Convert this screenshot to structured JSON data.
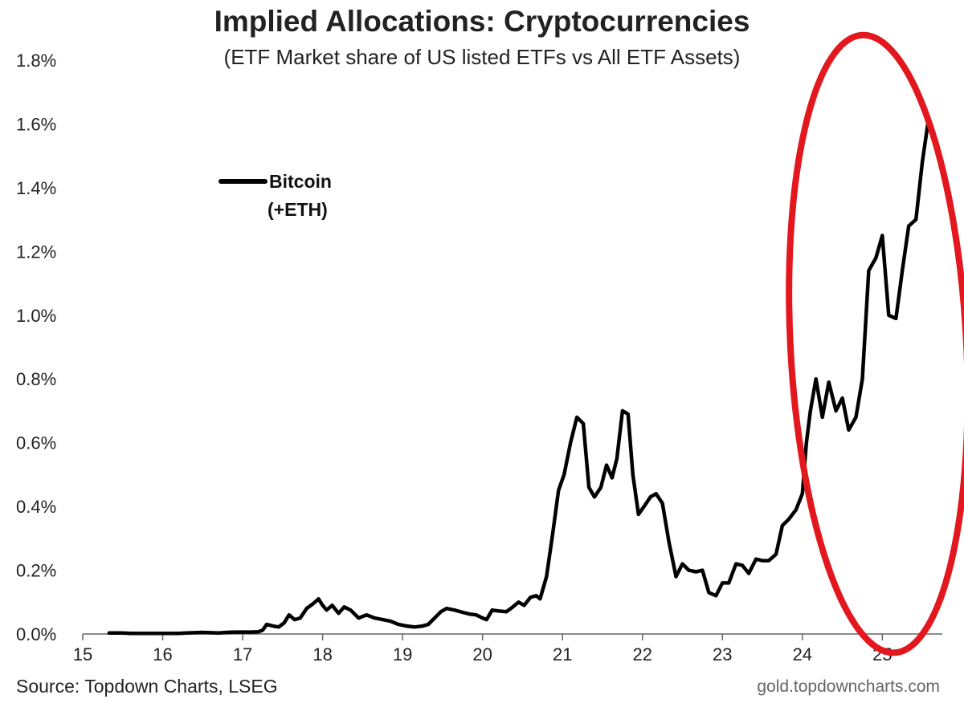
{
  "chart_data": {
    "type": "line",
    "title": "Implied Allocations: Cryptocurrencies",
    "subtitle": "(ETF Market share of US listed ETFs vs All ETF Assets)",
    "source": "Source: Topdown Charts, LSEG",
    "credit": "gold.topdowncharts.com",
    "xlabel": "",
    "ylabel": "",
    "xlim": [
      15,
      25.75
    ],
    "ylim": [
      0,
      1.8
    ],
    "x_ticks": [
      15,
      16,
      17,
      18,
      19,
      20,
      21,
      22,
      23,
      24,
      25
    ],
    "x_tick_labels": [
      "15",
      "16",
      "17",
      "18",
      "19",
      "20",
      "21",
      "22",
      "23",
      "24",
      "25"
    ],
    "y_ticks": [
      0,
      0.2,
      0.4,
      0.6,
      0.8,
      1.0,
      1.2,
      1.4,
      1.6,
      1.8
    ],
    "y_tick_labels": [
      "0.0%",
      "0.2%",
      "0.4%",
      "0.6%",
      "0.8%",
      "1.0%",
      "1.2%",
      "1.4%",
      "1.6%",
      "1.8%"
    ],
    "grid": false,
    "legend_position": "top-left",
    "series": [
      {
        "name": "Bitcoin (+ETH)",
        "name_lines": [
          "Bitcoin",
          "(+ETH)"
        ],
        "color": "#000000",
        "points": [
          [
            15.33,
            0.003
          ],
          [
            15.42,
            0.003
          ],
          [
            15.5,
            0.003
          ],
          [
            15.6,
            0.002
          ],
          [
            15.7,
            0.002
          ],
          [
            15.8,
            0.002
          ],
          [
            15.9,
            0.002
          ],
          [
            16.0,
            0.002
          ],
          [
            16.1,
            0.002
          ],
          [
            16.2,
            0.002
          ],
          [
            16.3,
            0.003
          ],
          [
            16.4,
            0.004
          ],
          [
            16.5,
            0.005
          ],
          [
            16.6,
            0.004
          ],
          [
            16.7,
            0.003
          ],
          [
            16.8,
            0.005
          ],
          [
            16.9,
            0.006
          ],
          [
            17.0,
            0.006
          ],
          [
            17.1,
            0.006
          ],
          [
            17.2,
            0.007
          ],
          [
            17.25,
            0.012
          ],
          [
            17.3,
            0.03
          ],
          [
            17.38,
            0.025
          ],
          [
            17.45,
            0.022
          ],
          [
            17.52,
            0.035
          ],
          [
            17.58,
            0.06
          ],
          [
            17.65,
            0.045
          ],
          [
            17.72,
            0.05
          ],
          [
            17.8,
            0.08
          ],
          [
            17.88,
            0.095
          ],
          [
            17.95,
            0.11
          ],
          [
            18.0,
            0.09
          ],
          [
            18.05,
            0.075
          ],
          [
            18.12,
            0.09
          ],
          [
            18.2,
            0.065
          ],
          [
            18.27,
            0.085
          ],
          [
            18.35,
            0.075
          ],
          [
            18.45,
            0.05
          ],
          [
            18.55,
            0.06
          ],
          [
            18.65,
            0.05
          ],
          [
            18.75,
            0.045
          ],
          [
            18.85,
            0.04
          ],
          [
            18.95,
            0.03
          ],
          [
            19.05,
            0.025
          ],
          [
            19.15,
            0.022
          ],
          [
            19.25,
            0.025
          ],
          [
            19.32,
            0.03
          ],
          [
            19.4,
            0.05
          ],
          [
            19.48,
            0.07
          ],
          [
            19.55,
            0.08
          ],
          [
            19.65,
            0.075
          ],
          [
            19.75,
            0.068
          ],
          [
            19.85,
            0.062
          ],
          [
            19.92,
            0.06
          ],
          [
            20.0,
            0.05
          ],
          [
            20.05,
            0.045
          ],
          [
            20.12,
            0.075
          ],
          [
            20.2,
            0.072
          ],
          [
            20.3,
            0.07
          ],
          [
            20.38,
            0.085
          ],
          [
            20.45,
            0.1
          ],
          [
            20.52,
            0.09
          ],
          [
            20.6,
            0.115
          ],
          [
            20.67,
            0.12
          ],
          [
            20.72,
            0.11
          ],
          [
            20.8,
            0.18
          ],
          [
            20.88,
            0.32
          ],
          [
            20.95,
            0.45
          ],
          [
            21.02,
            0.5
          ],
          [
            21.1,
            0.6
          ],
          [
            21.18,
            0.68
          ],
          [
            21.26,
            0.66
          ],
          [
            21.33,
            0.46
          ],
          [
            21.4,
            0.43
          ],
          [
            21.48,
            0.46
          ],
          [
            21.55,
            0.53
          ],
          [
            21.62,
            0.49
          ],
          [
            21.68,
            0.55
          ],
          [
            21.75,
            0.7
          ],
          [
            21.82,
            0.69
          ],
          [
            21.88,
            0.5
          ],
          [
            21.95,
            0.375
          ],
          [
            22.02,
            0.4
          ],
          [
            22.1,
            0.43
          ],
          [
            22.17,
            0.44
          ],
          [
            22.25,
            0.41
          ],
          [
            22.33,
            0.29
          ],
          [
            22.42,
            0.18
          ],
          [
            22.5,
            0.22
          ],
          [
            22.58,
            0.2
          ],
          [
            22.67,
            0.195
          ],
          [
            22.75,
            0.2
          ],
          [
            22.83,
            0.13
          ],
          [
            22.92,
            0.12
          ],
          [
            23.0,
            0.16
          ],
          [
            23.08,
            0.16
          ],
          [
            23.17,
            0.22
          ],
          [
            23.25,
            0.215
          ],
          [
            23.33,
            0.19
          ],
          [
            23.42,
            0.235
          ],
          [
            23.5,
            0.23
          ],
          [
            23.58,
            0.23
          ],
          [
            23.67,
            0.25
          ],
          [
            23.75,
            0.34
          ],
          [
            23.83,
            0.36
          ],
          [
            23.92,
            0.39
          ],
          [
            24.0,
            0.44
          ],
          [
            24.05,
            0.6
          ],
          [
            24.1,
            0.7
          ],
          [
            24.17,
            0.8
          ],
          [
            24.25,
            0.68
          ],
          [
            24.33,
            0.79
          ],
          [
            24.42,
            0.7
          ],
          [
            24.5,
            0.74
          ],
          [
            24.58,
            0.64
          ],
          [
            24.67,
            0.68
          ],
          [
            24.75,
            0.8
          ],
          [
            24.83,
            1.14
          ],
          [
            24.92,
            1.18
          ],
          [
            25.0,
            1.25
          ],
          [
            25.08,
            1.0
          ],
          [
            25.17,
            0.99
          ],
          [
            25.25,
            1.14
          ],
          [
            25.33,
            1.28
          ],
          [
            25.42,
            1.3
          ],
          [
            25.5,
            1.48
          ],
          [
            25.58,
            1.62
          ]
        ]
      }
    ],
    "annotations": [
      {
        "type": "ellipse",
        "color": "#e3171e",
        "x_range": [
          23.85,
          26.05
        ],
        "y_range": [
          -0.06,
          1.88
        ]
      }
    ]
  }
}
